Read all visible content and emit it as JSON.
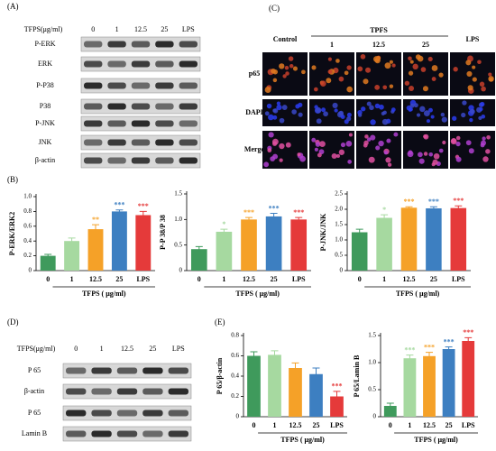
{
  "blot_a": {
    "label": "(A)",
    "header": "TFPS(μg/ml)",
    "lanes": [
      "0",
      "1",
      "12.5",
      "25",
      "LPS"
    ],
    "rows": [
      "P-ERK",
      "ERK",
      "P-P38",
      "P38",
      "P-JNK",
      "JNK",
      "β-actin"
    ]
  },
  "panel_c": {
    "label": "(C)",
    "group": "TPFS",
    "columns": [
      "Control",
      "1",
      "12.5",
      "25",
      "LPS"
    ],
    "rows": [
      "p65",
      "DAPI",
      "Merge"
    ]
  },
  "panel_b": "(B)",
  "blot_d": {
    "label": "(D)",
    "header": "TFPS(μg/ml)",
    "lanes": [
      "0",
      "1",
      "12.5",
      "25",
      "LPS"
    ],
    "rows": [
      "P 65",
      "β-actin",
      "P 65",
      "Lamin B"
    ]
  },
  "panel_e": "(E)",
  "chart_data": [
    {
      "type": "bar",
      "y_label": "P-ERK/ERK2",
      "x_label": "TFPS ( μg/ml)",
      "categories": [
        "0",
        "1",
        "12.5",
        "25",
        "LPS"
      ],
      "values": [
        0.2,
        0.4,
        0.56,
        0.8,
        0.75
      ],
      "errors": [
        0.02,
        0.04,
        0.06,
        0.02,
        0.05
      ],
      "sig_labels": [
        null,
        null,
        "**",
        "***",
        "***"
      ],
      "colors": [
        "#3f9a5c",
        "#a6d9a0",
        "#f5a128",
        "#3d7fc1",
        "#e53a3a"
      ],
      "ylim": [
        0,
        1
      ],
      "yticks": [
        0,
        0.2,
        0.4,
        0.6,
        0.8,
        {
          "value": 1,
          "label": "1.0"
        }
      ]
    },
    {
      "type": "bar",
      "y_label": "P-P 38/P 38",
      "x_label": "TFPS ( μg/ml)",
      "categories": [
        "0",
        "1",
        "12.5",
        "25",
        "LPS"
      ],
      "values": [
        0.42,
        0.76,
        1.0,
        1.06,
        1.0
      ],
      "errors": [
        0.05,
        0.05,
        0.04,
        0.06,
        0.04
      ],
      "sig_labels": [
        null,
        "*",
        "***",
        "***",
        "***"
      ],
      "colors": [
        "#3f9a5c",
        "#a6d9a0",
        "#f5a128",
        "#3d7fc1",
        "#e53a3a"
      ],
      "ylim": [
        0,
        1.5
      ],
      "yticks": [
        0,
        0.5,
        {
          "value": 1,
          "label": "1.0"
        },
        1.5
      ]
    },
    {
      "type": "bar",
      "y_label": "P-JNK/JNK",
      "x_label": "TFPS ( μg/ml)",
      "categories": [
        "0",
        "1",
        "12.5",
        "25",
        "LPS"
      ],
      "values": [
        1.25,
        1.72,
        2.05,
        2.03,
        2.04
      ],
      "errors": [
        0.1,
        0.1,
        0.03,
        0.05,
        0.07
      ],
      "sig_labels": [
        null,
        "*",
        "***",
        "***",
        "***"
      ],
      "colors": [
        "#3f9a5c",
        "#a6d9a0",
        "#f5a128",
        "#3d7fc1",
        "#e53a3a"
      ],
      "ylim": [
        0,
        2.5
      ],
      "yticks": [
        0,
        0.5,
        {
          "value": 1,
          "label": "1.0"
        },
        1.5,
        {
          "value": 2,
          "label": "2.0"
        },
        2.5
      ]
    },
    {
      "type": "bar",
      "y_label": "P 65/β-actin",
      "x_label": "TFPS ( μg/ml)",
      "categories": [
        "0",
        "1",
        "12.5",
        "25",
        "LPS"
      ],
      "values": [
        0.6,
        0.61,
        0.48,
        0.42,
        0.2
      ],
      "errors": [
        0.04,
        0.04,
        0.05,
        0.06,
        0.05
      ],
      "sig_labels": [
        null,
        null,
        null,
        null,
        "***"
      ],
      "colors": [
        "#3f9a5c",
        "#a6d9a0",
        "#f5a128",
        "#3d7fc1",
        "#e53a3a"
      ],
      "ylim": [
        0,
        0.8
      ],
      "yticks": [
        0,
        0.2,
        0.4,
        0.6,
        0.8
      ]
    },
    {
      "type": "bar",
      "y_label": "P 65/Lamin B",
      "x_label": "TFPS ( μg/ml)",
      "categories": [
        "0",
        "1",
        "12.5",
        "25",
        "LPS"
      ],
      "values": [
        0.2,
        1.08,
        1.12,
        1.25,
        1.4
      ],
      "errors": [
        0.05,
        0.06,
        0.07,
        0.04,
        0.06
      ],
      "sig_labels": [
        null,
        "***",
        "***",
        "***",
        "***"
      ],
      "colors": [
        "#3f9a5c",
        "#a6d9a0",
        "#f5a128",
        "#3d7fc1",
        "#e53a3a"
      ],
      "ylim": [
        0,
        1.5
      ],
      "yticks": [
        0,
        0.5,
        {
          "value": 1,
          "label": "1.0"
        },
        1.5
      ]
    }
  ]
}
